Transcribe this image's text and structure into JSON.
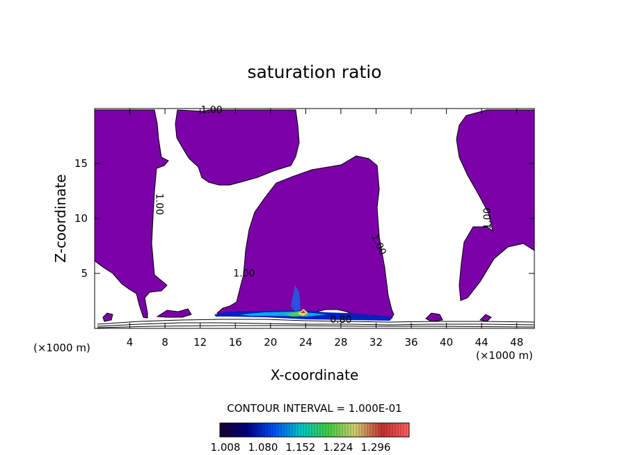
{
  "chart_data": {
    "type": "contour",
    "title": "saturation ratio",
    "xlabel": "X-coordinate",
    "ylabel": "Z-coordinate",
    "x_unit": "(×1000 m)",
    "y_unit": "(×1000 m)",
    "xlim": [
      0,
      50
    ],
    "ylim": [
      0,
      20
    ],
    "x_ticks": [
      4,
      8,
      12,
      16,
      20,
      24,
      28,
      32,
      36,
      40,
      44,
      48
    ],
    "y_ticks": [
      5,
      10,
      15
    ],
    "contour_interval_text": "CONTOUR INTERVAL = 1.000E-01",
    "contour_labels": [
      {
        "text": "1.00",
        "x": 13.3,
        "z": 19.6
      },
      {
        "text": "1.00",
        "x": 7.0,
        "z": 11.3
      },
      {
        "text": "1.00",
        "x": 17.0,
        "z": 4.7
      },
      {
        "text": "1.00",
        "x": 32.0,
        "z": 7.5
      },
      {
        "text": "1.00",
        "x": 45.0,
        "z": 10.0
      },
      {
        "text": "0.80",
        "x": 28.0,
        "z": 0.5
      }
    ],
    "fill_color": "#7b00a8",
    "colorbar": {
      "ticks": [
        "1.008",
        "1.080",
        "1.152",
        "1.224",
        "1.296"
      ],
      "colors": [
        "#1a0030",
        "#000080",
        "#0050ff",
        "#00c8c8",
        "#40d040",
        "#d0d070",
        "#c83030",
        "#ff6060"
      ]
    }
  }
}
